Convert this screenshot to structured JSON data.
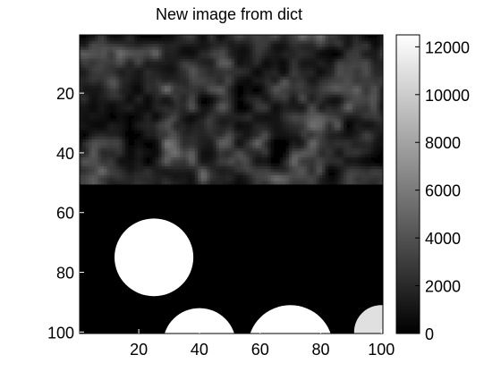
{
  "chart_data": {
    "type": "heatmap",
    "title": "New image from dict",
    "xlabel": "",
    "ylabel": "",
    "image_size": [
      100,
      100
    ],
    "xlim": [
      0.5,
      100.5
    ],
    "ylim": [
      100.5,
      0.5
    ],
    "y_direction": "reversed",
    "x_ticks": [
      20,
      40,
      60,
      80,
      100
    ],
    "y_ticks": [
      20,
      40,
      60,
      80,
      100
    ],
    "colormap": "gray",
    "colorbar": {
      "min": 0,
      "max": 12500,
      "ticks": [
        0,
        2000,
        4000,
        6000,
        8000,
        10000,
        12000
      ],
      "location": "right"
    },
    "grid": false,
    "regions": [
      {
        "name": "upper textured region",
        "rows": [
          1,
          50
        ],
        "cols": [
          1,
          100
        ],
        "value_range": [
          0,
          6500
        ],
        "description": "mottled noise"
      },
      {
        "name": "lower background",
        "rows": [
          51,
          100
        ],
        "cols": [
          1,
          100
        ],
        "value": 0
      }
    ],
    "objects": [
      {
        "shape": "disc",
        "center": [
          25,
          75
        ],
        "radius": 13,
        "value": 12500
      },
      {
        "shape": "disc",
        "center": [
          70,
          105
        ],
        "radius": 14,
        "value": 12500
      },
      {
        "shape": "disc",
        "center": [
          40,
          104
        ],
        "radius": 12,
        "value": 12500
      },
      {
        "shape": "disc",
        "center": [
          100,
          100
        ],
        "radius": 9,
        "value": 11000
      }
    ]
  }
}
